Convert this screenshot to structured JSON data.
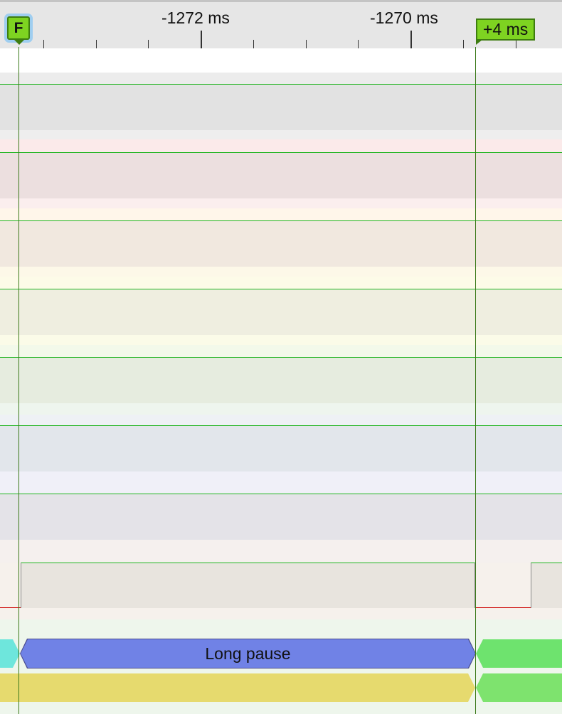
{
  "timeline": {
    "ruler": {
      "major_ticks": [
        "-1272 ms",
        "-1270 ms"
      ]
    },
    "marker": {
      "label": "F",
      "color": "#7ed321"
    },
    "selection_delta": "+4 ms"
  },
  "tracks": {
    "colors": {
      "separator": "#1fb41f",
      "selection_line": "#3c7a1b",
      "activity_line": "#cc0000"
    },
    "bars": {
      "long_pause_label": "Long pause",
      "long_pause_color": "#7082e6",
      "yellow_color": "#e6da6e",
      "green_color": "#6ee36e",
      "cyan_color": "#6ee6dc"
    }
  }
}
